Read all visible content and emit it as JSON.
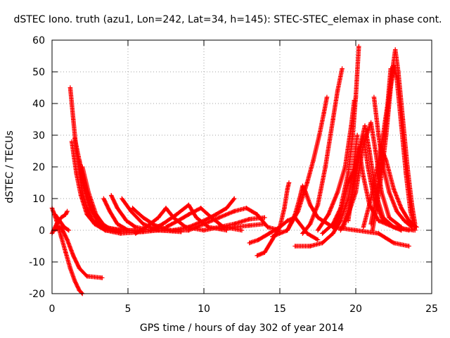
{
  "chart_data": {
    "type": "scatter",
    "title": "dSTEC Iono. truth (azu1, Lon=242, Lat=34, h=145): STEC-STEC_elemax in phase cont.",
    "xlabel": "GPS time / hours of day 302 of year 2014",
    "ylabel": "dSTEC  / TECUs",
    "xlim": [
      0,
      25
    ],
    "ylim": [
      -20,
      60
    ],
    "xticks": [
      0,
      5,
      10,
      15,
      20,
      25
    ],
    "yticks": [
      -20,
      -10,
      0,
      10,
      20,
      30,
      40,
      50,
      60
    ],
    "grid": true,
    "legend": "none",
    "marker": "plus",
    "color": "#ff0000",
    "series": [
      {
        "points": [
          [
            0.0,
            7
          ],
          [
            0.3,
            3
          ],
          [
            0.6,
            -2
          ],
          [
            0.9,
            -7
          ],
          [
            1.2,
            -12
          ],
          [
            1.5,
            -16
          ],
          [
            1.8,
            -19
          ],
          [
            2.0,
            -20
          ]
        ]
      },
      {
        "points": [
          [
            0.1,
            0
          ],
          [
            0.6,
            1
          ],
          [
            1.0,
            -3
          ],
          [
            1.4,
            -8
          ],
          [
            1.8,
            -12
          ],
          [
            2.3,
            -14.5
          ],
          [
            3.3,
            -15
          ]
        ]
      },
      {
        "points": [
          [
            0.0,
            -1
          ],
          [
            0.3,
            2
          ],
          [
            0.6,
            4
          ],
          [
            0.9,
            5
          ],
          [
            1.0,
            6
          ]
        ]
      },
      {
        "points": [
          [
            0.2,
            5
          ],
          [
            0.5,
            3
          ],
          [
            0.8,
            1
          ],
          [
            1.1,
            0
          ]
        ]
      },
      {
        "points": [
          [
            1.2,
            45
          ],
          [
            1.4,
            35
          ],
          [
            1.6,
            25
          ],
          [
            1.8,
            18
          ],
          [
            2.0,
            12
          ],
          [
            2.3,
            7
          ],
          [
            2.7,
            3
          ],
          [
            3.2,
            1
          ],
          [
            4.0,
            0
          ],
          [
            5.0,
            0
          ]
        ]
      },
      {
        "points": [
          [
            1.3,
            28
          ],
          [
            1.6,
            18
          ],
          [
            1.9,
            11
          ],
          [
            2.3,
            5
          ],
          [
            2.8,
            2
          ],
          [
            3.5,
            0
          ],
          [
            4.5,
            -0.5
          ]
        ]
      },
      {
        "points": [
          [
            1.5,
            29
          ],
          [
            1.8,
            22
          ],
          [
            2.1,
            14
          ],
          [
            2.5,
            7
          ],
          [
            3.0,
            3
          ],
          [
            3.8,
            0.5
          ],
          [
            5.0,
            0
          ]
        ]
      },
      {
        "points": [
          [
            1.8,
            22
          ],
          [
            2.1,
            15
          ],
          [
            2.5,
            8
          ],
          [
            3.0,
            3
          ],
          [
            3.5,
            0
          ],
          [
            4.5,
            -1
          ],
          [
            6.0,
            -0.5
          ]
        ]
      },
      {
        "points": [
          [
            2.0,
            20
          ],
          [
            2.4,
            12
          ],
          [
            2.9,
            5
          ],
          [
            3.5,
            1
          ],
          [
            4.5,
            0
          ],
          [
            6.0,
            0
          ]
        ]
      },
      {
        "points": [
          [
            3.4,
            10
          ],
          [
            3.8,
            6
          ],
          [
            4.3,
            2
          ],
          [
            5.0,
            0
          ],
          [
            6.0,
            -0.5
          ],
          [
            7.0,
            0
          ]
        ]
      },
      {
        "points": [
          [
            3.9,
            11
          ],
          [
            4.3,
            7
          ],
          [
            4.9,
            3
          ],
          [
            5.5,
            1
          ],
          [
            6.5,
            0
          ],
          [
            7.5,
            0
          ]
        ]
      },
      {
        "points": [
          [
            4.6,
            10
          ],
          [
            5.2,
            6
          ],
          [
            6.0,
            2
          ],
          [
            7.0,
            0
          ],
          [
            8.5,
            -0.5
          ]
        ]
      },
      {
        "points": [
          [
            5.3,
            7
          ],
          [
            6.0,
            4
          ],
          [
            6.8,
            1.5
          ],
          [
            7.8,
            0
          ],
          [
            9.0,
            0
          ]
        ]
      },
      {
        "points": [
          [
            5.5,
            -1
          ],
          [
            6.2,
            1
          ],
          [
            7.0,
            4
          ],
          [
            7.5,
            7
          ],
          [
            8.0,
            4
          ],
          [
            8.8,
            1
          ],
          [
            10.0,
            0
          ]
        ]
      },
      {
        "points": [
          [
            6.5,
            0
          ],
          [
            7.3,
            2
          ],
          [
            8.2,
            5
          ],
          [
            9.0,
            8
          ],
          [
            9.5,
            4
          ],
          [
            10.3,
            1
          ],
          [
            11.5,
            0
          ]
        ]
      },
      {
        "points": [
          [
            7.5,
            1
          ],
          [
            8.3,
            3
          ],
          [
            9.0,
            5
          ],
          [
            9.8,
            7
          ],
          [
            10.5,
            4
          ],
          [
            11.3,
            1
          ],
          [
            12.5,
            0
          ]
        ]
      },
      {
        "points": [
          [
            8.0,
            0
          ],
          [
            9.0,
            1
          ],
          [
            10.0,
            3
          ],
          [
            10.8,
            5
          ],
          [
            11.5,
            7
          ],
          [
            12.0,
            10
          ]
        ]
      },
      {
        "points": [
          [
            9.0,
            0
          ],
          [
            10.0,
            2
          ],
          [
            11.0,
            4
          ],
          [
            12.0,
            6
          ],
          [
            12.8,
            7
          ],
          [
            13.5,
            5
          ],
          [
            14.2,
            1
          ],
          [
            15.0,
            0
          ]
        ]
      },
      {
        "points": [
          [
            10.0,
            0
          ],
          [
            11.0,
            1
          ],
          [
            12.0,
            2
          ],
          [
            13.0,
            3.5
          ],
          [
            14.0,
            4
          ]
        ]
      },
      {
        "points": [
          [
            11.0,
            0.5
          ],
          [
            12.0,
            1
          ],
          [
            13.0,
            1.5
          ],
          [
            14.0,
            2
          ]
        ]
      },
      {
        "points": [
          [
            13.0,
            -4
          ],
          [
            13.6,
            -3
          ],
          [
            14.3,
            -1
          ],
          [
            15.0,
            1
          ],
          [
            15.5,
            3
          ],
          [
            16.0,
            4
          ],
          [
            16.8,
            -1
          ],
          [
            17.5,
            -3
          ]
        ]
      },
      {
        "points": [
          [
            13.5,
            -8
          ],
          [
            14.0,
            -7
          ],
          [
            14.5,
            -3
          ],
          [
            15.0,
            1
          ],
          [
            15.3,
            7
          ],
          [
            15.5,
            13
          ],
          [
            15.6,
            15
          ]
        ]
      },
      {
        "points": [
          [
            14.5,
            -2
          ],
          [
            15.5,
            0
          ],
          [
            16.0,
            5
          ],
          [
            16.3,
            10
          ],
          [
            16.5,
            14
          ],
          [
            16.7,
            12
          ],
          [
            17.0,
            8
          ],
          [
            17.5,
            4
          ],
          [
            18.5,
            1
          ],
          [
            20.0,
            0
          ],
          [
            21.5,
            -1
          ],
          [
            22.5,
            -4
          ],
          [
            23.5,
            -5
          ]
        ]
      },
      {
        "points": [
          [
            15.5,
            0
          ],
          [
            16.2,
            6
          ],
          [
            16.8,
            15
          ],
          [
            17.2,
            22
          ],
          [
            17.6,
            30
          ],
          [
            17.9,
            37
          ],
          [
            18.1,
            42
          ]
        ]
      },
      {
        "points": [
          [
            16.0,
            -5
          ],
          [
            17.0,
            -5
          ],
          [
            17.8,
            -4
          ],
          [
            18.5,
            -1
          ],
          [
            19.0,
            3
          ],
          [
            19.5,
            10
          ],
          [
            19.8,
            18
          ],
          [
            20.0,
            26
          ],
          [
            20.1,
            30
          ]
        ]
      },
      {
        "points": [
          [
            16.5,
            -1
          ],
          [
            17.0,
            2
          ],
          [
            17.5,
            8
          ],
          [
            18.0,
            20
          ],
          [
            18.5,
            35
          ],
          [
            18.8,
            44
          ],
          [
            19.1,
            51
          ]
        ]
      },
      {
        "points": [
          [
            17.5,
            0
          ],
          [
            18.2,
            5
          ],
          [
            18.8,
            12
          ],
          [
            19.3,
            20
          ],
          [
            19.7,
            33
          ],
          [
            19.9,
            41
          ]
        ]
      },
      {
        "points": [
          [
            17.8,
            -1
          ],
          [
            18.5,
            2
          ],
          [
            19.0,
            7
          ],
          [
            19.5,
            18
          ],
          [
            19.8,
            30
          ],
          [
            20.0,
            42
          ],
          [
            20.2,
            58
          ]
        ]
      },
      {
        "points": [
          [
            18.5,
            1
          ],
          [
            19.0,
            5
          ],
          [
            19.5,
            15
          ],
          [
            20.0,
            20
          ],
          [
            20.3,
            27
          ],
          [
            20.6,
            33
          ],
          [
            20.9,
            25
          ],
          [
            21.3,
            12
          ],
          [
            21.8,
            4
          ],
          [
            22.5,
            1
          ],
          [
            23.0,
            0
          ]
        ]
      },
      {
        "points": [
          [
            19.0,
            0
          ],
          [
            19.5,
            5
          ],
          [
            20.0,
            12
          ],
          [
            20.5,
            27
          ],
          [
            21.0,
            34
          ],
          [
            21.3,
            25
          ],
          [
            21.7,
            12
          ],
          [
            22.2,
            4
          ],
          [
            23.0,
            1
          ]
        ]
      },
      {
        "points": [
          [
            19.2,
            1
          ],
          [
            19.7,
            10
          ],
          [
            20.1,
            20
          ],
          [
            20.5,
            30
          ],
          [
            20.8,
            20
          ],
          [
            21.2,
            10
          ],
          [
            21.8,
            3
          ],
          [
            22.5,
            1
          ],
          [
            23.5,
            0
          ]
        ]
      },
      {
        "points": [
          [
            19.5,
            3
          ],
          [
            19.9,
            16
          ],
          [
            20.2,
            26
          ],
          [
            20.5,
            17
          ],
          [
            20.9,
            8
          ],
          [
            21.5,
            3
          ],
          [
            22.5,
            1
          ],
          [
            23.8,
            0
          ]
        ]
      },
      {
        "points": [
          [
            20.5,
            1
          ],
          [
            21.0,
            10
          ],
          [
            21.5,
            22
          ],
          [
            21.8,
            30
          ],
          [
            22.1,
            40
          ],
          [
            22.3,
            51
          ]
        ]
      },
      {
        "points": [
          [
            21.0,
            2
          ],
          [
            21.3,
            10
          ],
          [
            21.6,
            20
          ],
          [
            21.9,
            30
          ],
          [
            22.2,
            42
          ],
          [
            22.4,
            50
          ],
          [
            22.6,
            57
          ],
          [
            22.8,
            50
          ],
          [
            23.1,
            35
          ],
          [
            23.4,
            20
          ],
          [
            23.7,
            8
          ],
          [
            23.9,
            2
          ]
        ]
      },
      {
        "points": [
          [
            21.1,
            0
          ],
          [
            21.4,
            8
          ],
          [
            21.7,
            18
          ],
          [
            22.0,
            30
          ],
          [
            22.3,
            45
          ],
          [
            22.5,
            52
          ],
          [
            22.7,
            48
          ],
          [
            23.0,
            33
          ],
          [
            23.3,
            18
          ],
          [
            23.6,
            6
          ],
          [
            23.9,
            0
          ]
        ]
      },
      {
        "points": [
          [
            21.2,
            42
          ],
          [
            21.5,
            30
          ],
          [
            21.8,
            20
          ],
          [
            22.2,
            12
          ],
          [
            22.7,
            6
          ],
          [
            23.2,
            3
          ],
          [
            23.7,
            1
          ]
        ]
      },
      {
        "points": [
          [
            21.6,
            27
          ],
          [
            22.0,
            22
          ],
          [
            22.5,
            13
          ],
          [
            23.0,
            7
          ],
          [
            23.5,
            3
          ],
          [
            24.0,
            1
          ]
        ]
      }
    ]
  }
}
